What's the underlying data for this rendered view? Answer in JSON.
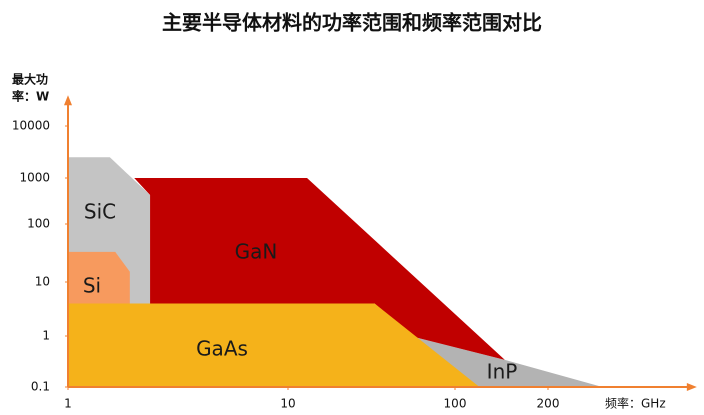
{
  "chart_data": {
    "type": "region",
    "title": "主要半导体材料的功率范围和频率范围对比",
    "y_label": [
      "最大功",
      "率：W"
    ],
    "x_label": "频率：GHz",
    "log_x": true,
    "log_y": true,
    "xlim": [
      1,
      580
    ],
    "ylim": [
      0.1,
      30000
    ],
    "xticks": [
      1,
      10,
      100,
      200
    ],
    "yticks": [
      0.1,
      1,
      10,
      100,
      1000,
      10000
    ],
    "axis_color": "#f08030",
    "series": [
      {
        "name": "InP",
        "color": "#b3b3b3",
        "x": [
          54,
          145,
          300,
          100
        ],
        "y": [
          1,
          0.34,
          0.1,
          0.1
        ]
      },
      {
        "name": "GaN",
        "color": "#c00000",
        "x": [
          2,
          13,
          145,
          54,
          33,
          2.36,
          2.36
        ],
        "y": [
          1000,
          1000,
          0.34,
          1,
          4,
          4,
          427
        ]
      },
      {
        "name": "GaAs",
        "color": "#f5b21a",
        "x": [
          1,
          1,
          33,
          120
        ],
        "y": [
          0.1,
          4,
          4,
          0.1
        ]
      },
      {
        "name": "SiC",
        "color": "#c4c4c4",
        "x": [
          1,
          1.55,
          2.36,
          2.36,
          1
        ],
        "y": [
          2500,
          2500,
          427,
          4,
          4
        ]
      },
      {
        "name": "Si",
        "color": "#f79a5e",
        "x": [
          1,
          1.64,
          1.91,
          1.91,
          1
        ],
        "y": [
          33,
          33,
          15,
          4,
          4
        ]
      }
    ]
  }
}
